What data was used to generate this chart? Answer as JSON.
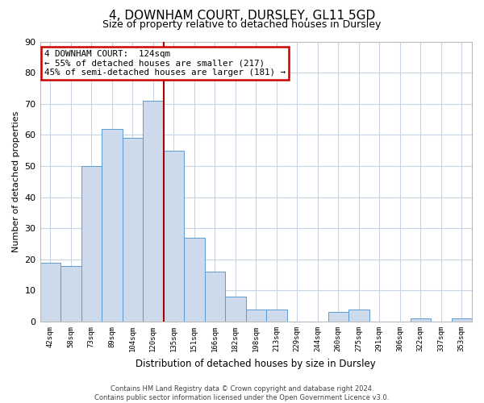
{
  "title": "4, DOWNHAM COURT, DURSLEY, GL11 5GD",
  "subtitle": "Size of property relative to detached houses in Dursley",
  "xlabel": "Distribution of detached houses by size in Dursley",
  "ylabel": "Number of detached properties",
  "bin_labels": [
    "42sqm",
    "58sqm",
    "73sqm",
    "89sqm",
    "104sqm",
    "120sqm",
    "135sqm",
    "151sqm",
    "166sqm",
    "182sqm",
    "198sqm",
    "213sqm",
    "229sqm",
    "244sqm",
    "260sqm",
    "275sqm",
    "291sqm",
    "306sqm",
    "322sqm",
    "337sqm",
    "353sqm"
  ],
  "bar_heights": [
    19,
    18,
    50,
    62,
    59,
    71,
    55,
    27,
    16,
    8,
    4,
    4,
    0,
    0,
    3,
    4,
    0,
    0,
    1,
    0,
    1
  ],
  "bar_color": "#ccdaeb",
  "bar_edge_color": "#5b9bd5",
  "ylim": [
    0,
    90
  ],
  "yticks": [
    0,
    10,
    20,
    30,
    40,
    50,
    60,
    70,
    80,
    90
  ],
  "vline_x": 5.5,
  "vline_color": "#aa0000",
  "annotation_box_title": "4 DOWNHAM COURT:  124sqm",
  "annotation_line1": "← 55% of detached houses are smaller (217)",
  "annotation_line2": "45% of semi-detached houses are larger (181) →",
  "annotation_box_edge_color": "#cc0000",
  "footer_line1": "Contains HM Land Registry data © Crown copyright and database right 2024.",
  "footer_line2": "Contains public sector information licensed under the Open Government Licence v3.0.",
  "background_color": "#ffffff",
  "grid_color": "#c8d4e4"
}
